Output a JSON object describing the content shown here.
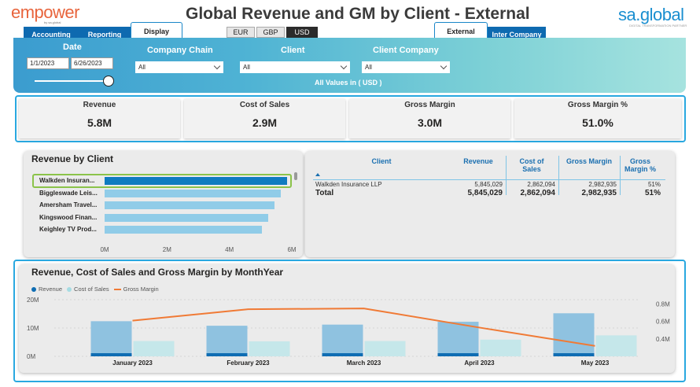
{
  "header": {
    "logo": "empower",
    "logo_sub": "by sa.global",
    "title": "Global Revenue and GM by Client - External",
    "brand": "sa.global",
    "brand_sub": "DIGITAL TRANSFORMATION PARTNER"
  },
  "tabs": {
    "accounting": "Accounting",
    "reporting": "Reporting",
    "display": "Display",
    "external": "External",
    "inter_company": "Inter Company"
  },
  "currencies": [
    "EUR",
    "GBP",
    "USD"
  ],
  "filters": {
    "date_label": "Date",
    "date_from": "1/1/2023",
    "date_to": "6/26/2023",
    "company_chain_label": "Company Chain",
    "company_chain_value": "All",
    "client_label": "Client",
    "client_value": "All",
    "client_company_label": "Client Company",
    "client_company_value": "All",
    "all_values_note": "All Values in ( USD )"
  },
  "kpis": [
    {
      "label": "Revenue",
      "value": "5.8M"
    },
    {
      "label": "Cost of Sales",
      "value": "2.9M"
    },
    {
      "label": "Gross Margin",
      "value": "3.0M"
    },
    {
      "label": "Gross Margin %",
      "value": "51.0%"
    }
  ],
  "revenue_by_client": {
    "title": "Revenue by Client",
    "clients": [
      "Walkden Insuran...",
      "Biggleswade Leis...",
      "Amersham Travel...",
      "Kingswood Finan...",
      "Keighley TV Prod..."
    ],
    "values_m": [
      5.85,
      5.65,
      5.45,
      5.25,
      5.05
    ],
    "axis_ticks": [
      "0M",
      "2M",
      "4M",
      "6M"
    ],
    "axis_max_m": 6
  },
  "table": {
    "headers": [
      "Client",
      "Revenue",
      "Cost of Sales",
      "Gross Margin",
      "Gross Margin %"
    ],
    "rows": [
      {
        "client": "Walkden Insurance LLP",
        "revenue": "5,845,029",
        "cost": "2,862,094",
        "gm": "2,982,935",
        "gmp": "51%"
      }
    ],
    "total": {
      "client": "Total",
      "revenue": "5,845,029",
      "cost": "2,862,094",
      "gm": "2,982,935",
      "gmp": "51%"
    }
  },
  "chart_data": {
    "type": "bar",
    "title": "Revenue, Cost of Sales and Gross Margin by MonthYear",
    "categories": [
      "January 2023",
      "February 2023",
      "March 2023",
      "April 2023",
      "May 2023"
    ],
    "series": [
      {
        "name": "Revenue",
        "values": [
          12.4,
          10.8,
          11.2,
          12.2,
          15.2
        ],
        "axis": "left"
      },
      {
        "name": "Cost of Sales",
        "values": [
          5.4,
          5.3,
          5.4,
          5.9,
          7.4
        ],
        "axis": "left"
      },
      {
        "name": "Gross Margin",
        "values": [
          0.61,
          0.74,
          0.75,
          0.53,
          0.32
        ],
        "axis": "right",
        "type": "line"
      }
    ],
    "y_left_ticks": [
      "0M",
      "10M",
      "20M"
    ],
    "y_left_lim": [
      0,
      20
    ],
    "y_right_ticks": [
      "0.4M",
      "0.6M",
      "0.8M"
    ],
    "y_right_lim": [
      0.2,
      0.85
    ],
    "legend": "top-left",
    "colors": {
      "revenue": "#8fc2e0",
      "revenue_dark": "#0f6db3",
      "cost": "#c5e7ea",
      "gm": "#f07a35"
    }
  }
}
